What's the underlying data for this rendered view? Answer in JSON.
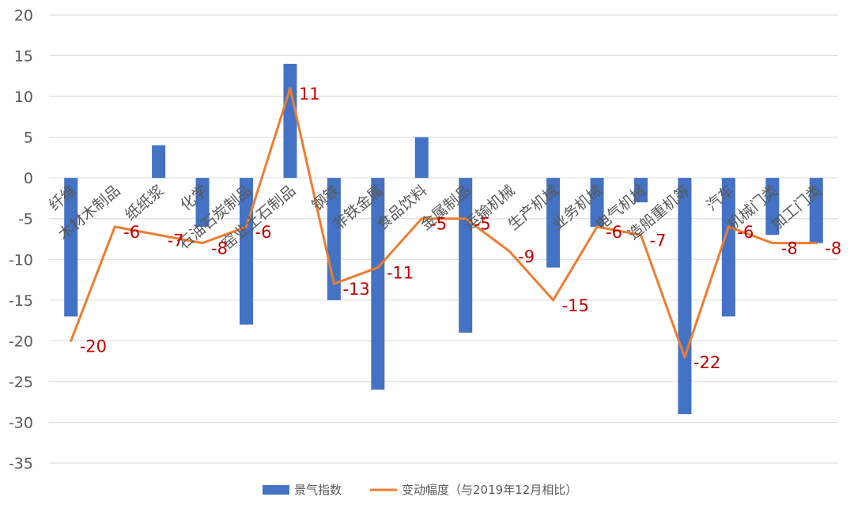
{
  "chart_data": {
    "type": "bar",
    "title": "",
    "xlabel": "",
    "ylabel": "",
    "ylim": [
      -35,
      20
    ],
    "ytick_step": 5,
    "grid": true,
    "legend_position": "bottom",
    "categories": [
      "纤维",
      "木材木制品",
      "纸纸浆",
      "化学",
      "石油石炭制品",
      "窑业土石制品",
      "钢铁",
      "非铁金属",
      "食品饮料",
      "金属制品",
      "运输机械",
      "生产机械",
      "业务机械",
      "电气机械",
      "造船重机等",
      "汽车",
      "机械门类",
      "加工门类"
    ],
    "series": [
      {
        "name": "景气指数",
        "type": "bar",
        "color": "#4472c4",
        "values": [
          -17,
          0,
          4,
          -6,
          -18,
          14,
          -15,
          -26,
          5,
          -19,
          0,
          -11,
          -6,
          -3,
          -29,
          -17,
          -7,
          -8
        ]
      },
      {
        "name": "变动幅度（与2019年12月相比）",
        "type": "line",
        "color": "#ed7d31",
        "values": [
          -20,
          -6,
          -7,
          -8,
          -6,
          11,
          -13,
          -11,
          -5,
          -5,
          -9,
          -15,
          -6,
          -7,
          -22,
          -6,
          -8,
          -8
        ]
      }
    ],
    "data_labels": [
      "-20",
      "-6",
      "-7",
      "-8",
      "-6",
      "11",
      "-13",
      "-11",
      "-5",
      "-5",
      "-9",
      "-15",
      "-6",
      "-7",
      "-22",
      "-6",
      "-8",
      "-8"
    ]
  },
  "colors": {
    "grid": "#d9d9d9",
    "label": "#c00000",
    "text": "#595959"
  }
}
